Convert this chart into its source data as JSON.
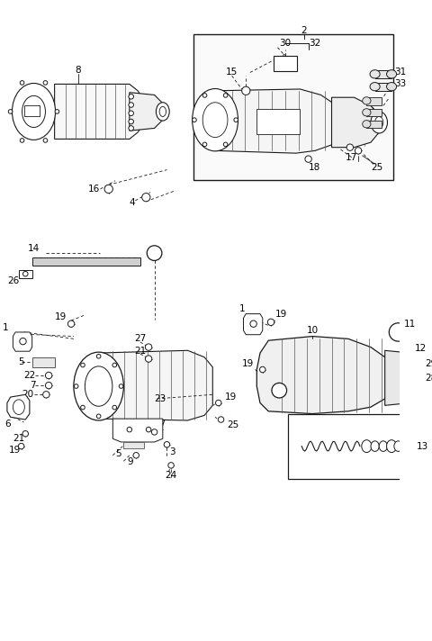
{
  "bg_color": "#ffffff",
  "line_color": "#1a1a1a",
  "lw": 0.8,
  "label_fs": 7.5,
  "fig_w": 4.8,
  "fig_h": 7.12,
  "dpi": 100
}
